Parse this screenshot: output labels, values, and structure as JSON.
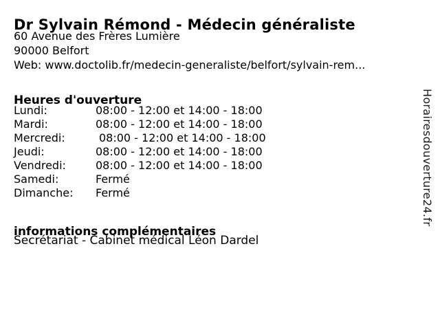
{
  "page": {
    "title": "Dr Sylvain Rémond - Médecin généraliste",
    "address": {
      "street": "60 Avenue des Frères Lumière",
      "city": "90000 Belfort",
      "web_label": "Web: ",
      "web_url": "www.doctolib.fr/medecin-generaliste/belfort/sylvain-rem..."
    },
    "hours_section": {
      "heading": "Heures d'ouverture",
      "rows": [
        {
          "day": "Lundi:",
          "time": "08:00 - 12:00 et 14:00 - 18:00"
        },
        {
          "day": "Mardi:",
          "time": "08:00 - 12:00 et 14:00 - 18:00"
        },
        {
          "day": "Mercredi:",
          "time": "08:00 - 12:00 et 14:00 - 18:00"
        },
        {
          "day": "Jeudi:",
          "time": "08:00 - 12:00 et 14:00 - 18:00"
        },
        {
          "day": "Vendredi:",
          "time": "08:00 - 12:00 et 14:00 - 18:00"
        },
        {
          "day": "Samedi:",
          "time": "Fermé"
        },
        {
          "day": "Dimanche:",
          "time": "Fermé"
        }
      ]
    },
    "info_section": {
      "heading": "informations complémentaires",
      "text": "Secrétariat - Cabinet médical Léon Dardel"
    },
    "watermark": "Horairesdouverture24.fr",
    "colors": {
      "background": "#ffffff",
      "text": "#000000",
      "watermark": "#1a1a1a"
    }
  }
}
